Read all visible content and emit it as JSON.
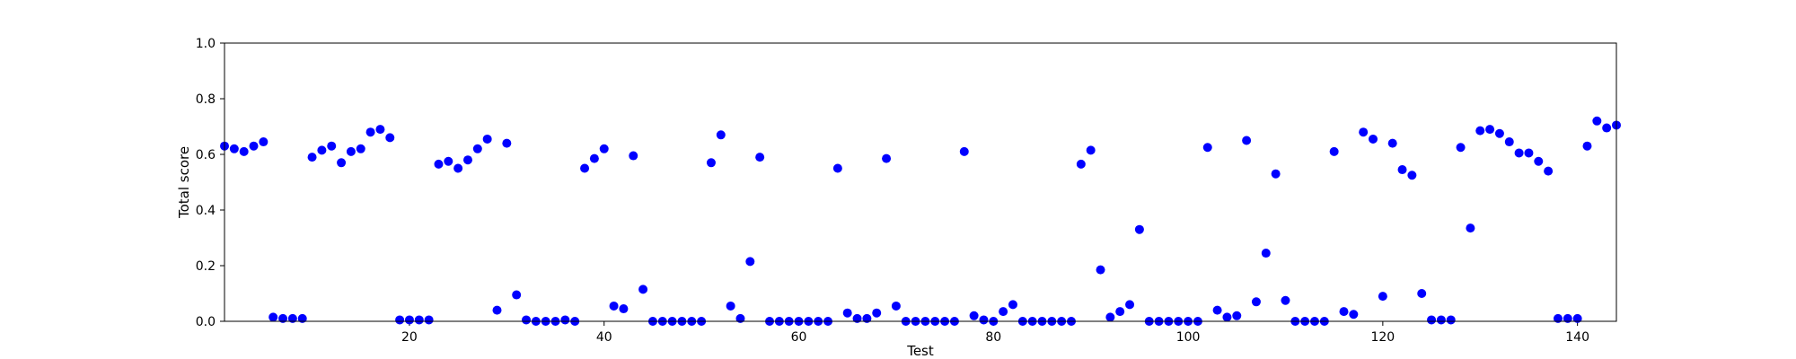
{
  "chart_data": {
    "type": "scatter",
    "title": "",
    "xlabel": "Test",
    "ylabel": "Total score",
    "xlim": [
      1,
      144
    ],
    "ylim": [
      0.0,
      1.0
    ],
    "grid": false,
    "marker_color": "#0000ff",
    "x_ticks": [
      20,
      40,
      60,
      80,
      100,
      120,
      140
    ],
    "y_ticks": [
      "0.0",
      "0.2",
      "0.4",
      "0.6",
      "0.8",
      "1.0"
    ],
    "series": [
      {
        "x": [
          1,
          2,
          3,
          4,
          5,
          6,
          7,
          8,
          9,
          10,
          11,
          12,
          13,
          14,
          15,
          16,
          17,
          18,
          19,
          20,
          21,
          22,
          23,
          24,
          25,
          26,
          27,
          28,
          29,
          30,
          31,
          32,
          33,
          34,
          35,
          36,
          37,
          38,
          39,
          40,
          41,
          42,
          43,
          44,
          45,
          46,
          47,
          48,
          49,
          50,
          51,
          52,
          53,
          54,
          55,
          56,
          57,
          58,
          59,
          60,
          61,
          62,
          63,
          64,
          65,
          66,
          67,
          68,
          69,
          70,
          71,
          72,
          73,
          74,
          75,
          76,
          77,
          78,
          79,
          80,
          81,
          82,
          83,
          84,
          85,
          86,
          87,
          88,
          89,
          90,
          91,
          92,
          93,
          94,
          95,
          96,
          97,
          98,
          99,
          100,
          101,
          102,
          103,
          104,
          105,
          106,
          107,
          108,
          109,
          110,
          111,
          112,
          113,
          114,
          115,
          116,
          117,
          118,
          119,
          120,
          121,
          122,
          123,
          124,
          125,
          126,
          127,
          128,
          129,
          130,
          131,
          132,
          133,
          134,
          135,
          136,
          137,
          138,
          139,
          140,
          141,
          142,
          143,
          144
        ],
        "y": [
          0.63,
          0.62,
          0.61,
          0.63,
          0.645,
          0.015,
          0.01,
          0.01,
          0.01,
          0.59,
          0.615,
          0.63,
          0.57,
          0.61,
          0.62,
          0.68,
          0.69,
          0.66,
          0.005,
          0.005,
          0.005,
          0.005,
          0.565,
          0.575,
          0.55,
          0.58,
          0.62,
          0.655,
          0.04,
          0.64,
          0.095,
          0.005,
          0.0,
          0.0,
          0.0,
          0.005,
          0.0,
          0.55,
          0.585,
          0.62,
          0.055,
          0.045,
          0.595,
          0.115,
          0.0,
          0.0,
          0.0,
          0.0,
          0.0,
          0.0,
          0.57,
          0.67,
          0.055,
          0.01,
          0.215,
          0.59,
          0.0,
          0.0,
          0.0,
          0.0,
          0.0,
          0.0,
          0.0,
          0.55,
          0.03,
          0.01,
          0.01,
          0.03,
          0.585,
          0.055,
          0.0,
          0.0,
          0.0,
          0.0,
          0.0,
          0.0,
          0.61,
          0.02,
          0.005,
          0.0,
          0.035,
          0.06,
          0.0,
          0.0,
          0.0,
          0.0,
          0.0,
          0.0,
          0.565,
          0.615,
          0.185,
          0.015,
          0.035,
          0.06,
          0.33,
          0.0,
          0.0,
          0.0,
          0.0,
          0.0,
          0.0,
          0.625,
          0.04,
          0.015,
          0.02,
          0.65,
          0.07,
          0.245,
          0.53,
          0.075,
          0.0,
          0.0,
          0.0,
          0.0,
          0.61,
          0.035,
          0.025,
          0.68,
          0.655,
          0.09,
          0.64,
          0.545,
          0.525,
          0.1,
          0.005,
          0.005,
          0.005,
          0.625,
          0.335,
          0.685,
          0.69,
          0.675,
          0.645,
          0.605,
          0.605,
          0.575,
          0.54,
          0.01,
          0.01,
          0.01,
          0.63,
          0.72,
          0.695,
          0.705
        ]
      }
    ]
  }
}
